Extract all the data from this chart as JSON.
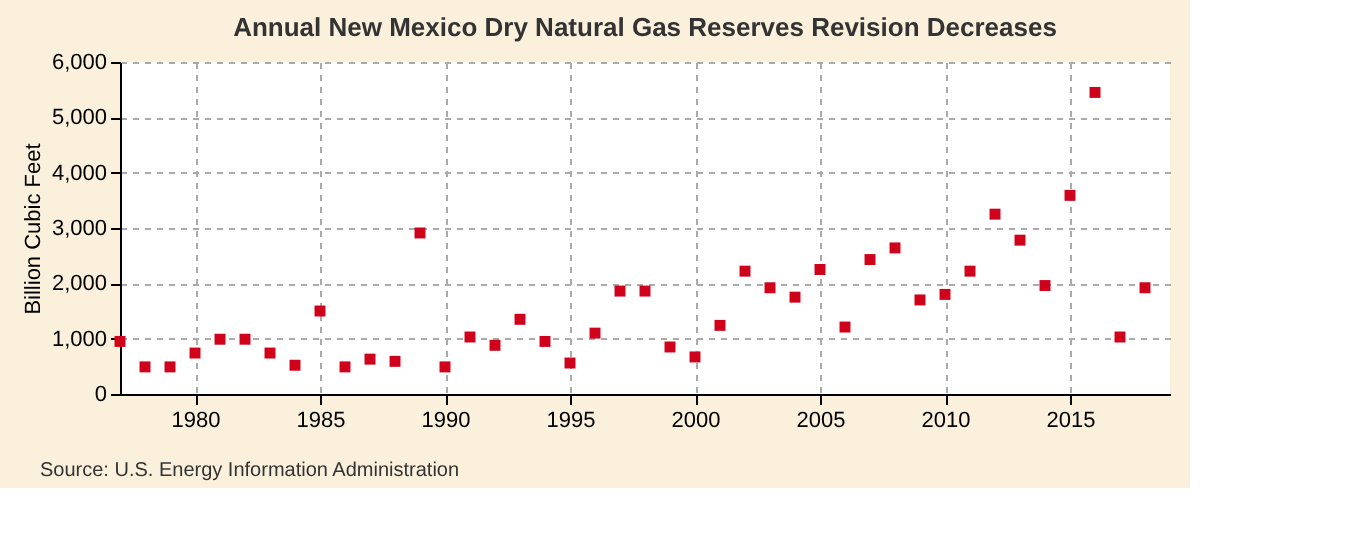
{
  "chart_data": {
    "type": "scatter",
    "title": "Annual New Mexico Dry Natural Gas Reserves Revision Decreases",
    "ylabel": "Billion Cubic Feet",
    "x": [
      1977,
      1978,
      1979,
      1980,
      1981,
      1982,
      1983,
      1984,
      1985,
      1986,
      1987,
      1988,
      1989,
      1990,
      1991,
      1992,
      1993,
      1994,
      1995,
      1996,
      1997,
      1998,
      1999,
      2000,
      2001,
      2002,
      2003,
      2004,
      2005,
      2006,
      2007,
      2008,
      2009,
      2010,
      2011,
      2012,
      2013,
      2014,
      2015,
      2016,
      2017,
      2018
    ],
    "series": [
      {
        "color": "#d0021b",
        "values": [
          950,
          490,
          490,
          740,
          990,
          990,
          740,
          520,
          1500,
          490,
          630,
          590,
          2910,
          490,
          1030,
          880,
          1350,
          950,
          560,
          1100,
          1860,
          1860,
          850,
          670,
          1240,
          2220,
          1920,
          1750,
          2250,
          1210,
          2430,
          2640,
          1700,
          1800,
          2220,
          3250,
          2780,
          1960,
          3590,
          5450,
          1030,
          1920
        ]
      }
    ],
    "xlim": [
      1977,
      2019
    ],
    "xticks": [
      1980,
      1985,
      1990,
      1995,
      2000,
      2005,
      2010,
      2015
    ],
    "ylim": [
      0,
      6000
    ],
    "yticks": [
      {
        "value": 0,
        "label": "0"
      },
      {
        "value": 1000,
        "label": "1,000"
      },
      {
        "value": 2000,
        "label": "2,000"
      },
      {
        "value": 3000,
        "label": "3,000"
      },
      {
        "value": 4000,
        "label": "4,000"
      },
      {
        "value": 5000,
        "label": "5,000"
      },
      {
        "value": 6000,
        "label": "6,000"
      }
    ],
    "grid": true,
    "marker": "square",
    "legend": false,
    "annotations": [
      "Source: U.S. Energy Information Administration"
    ]
  }
}
